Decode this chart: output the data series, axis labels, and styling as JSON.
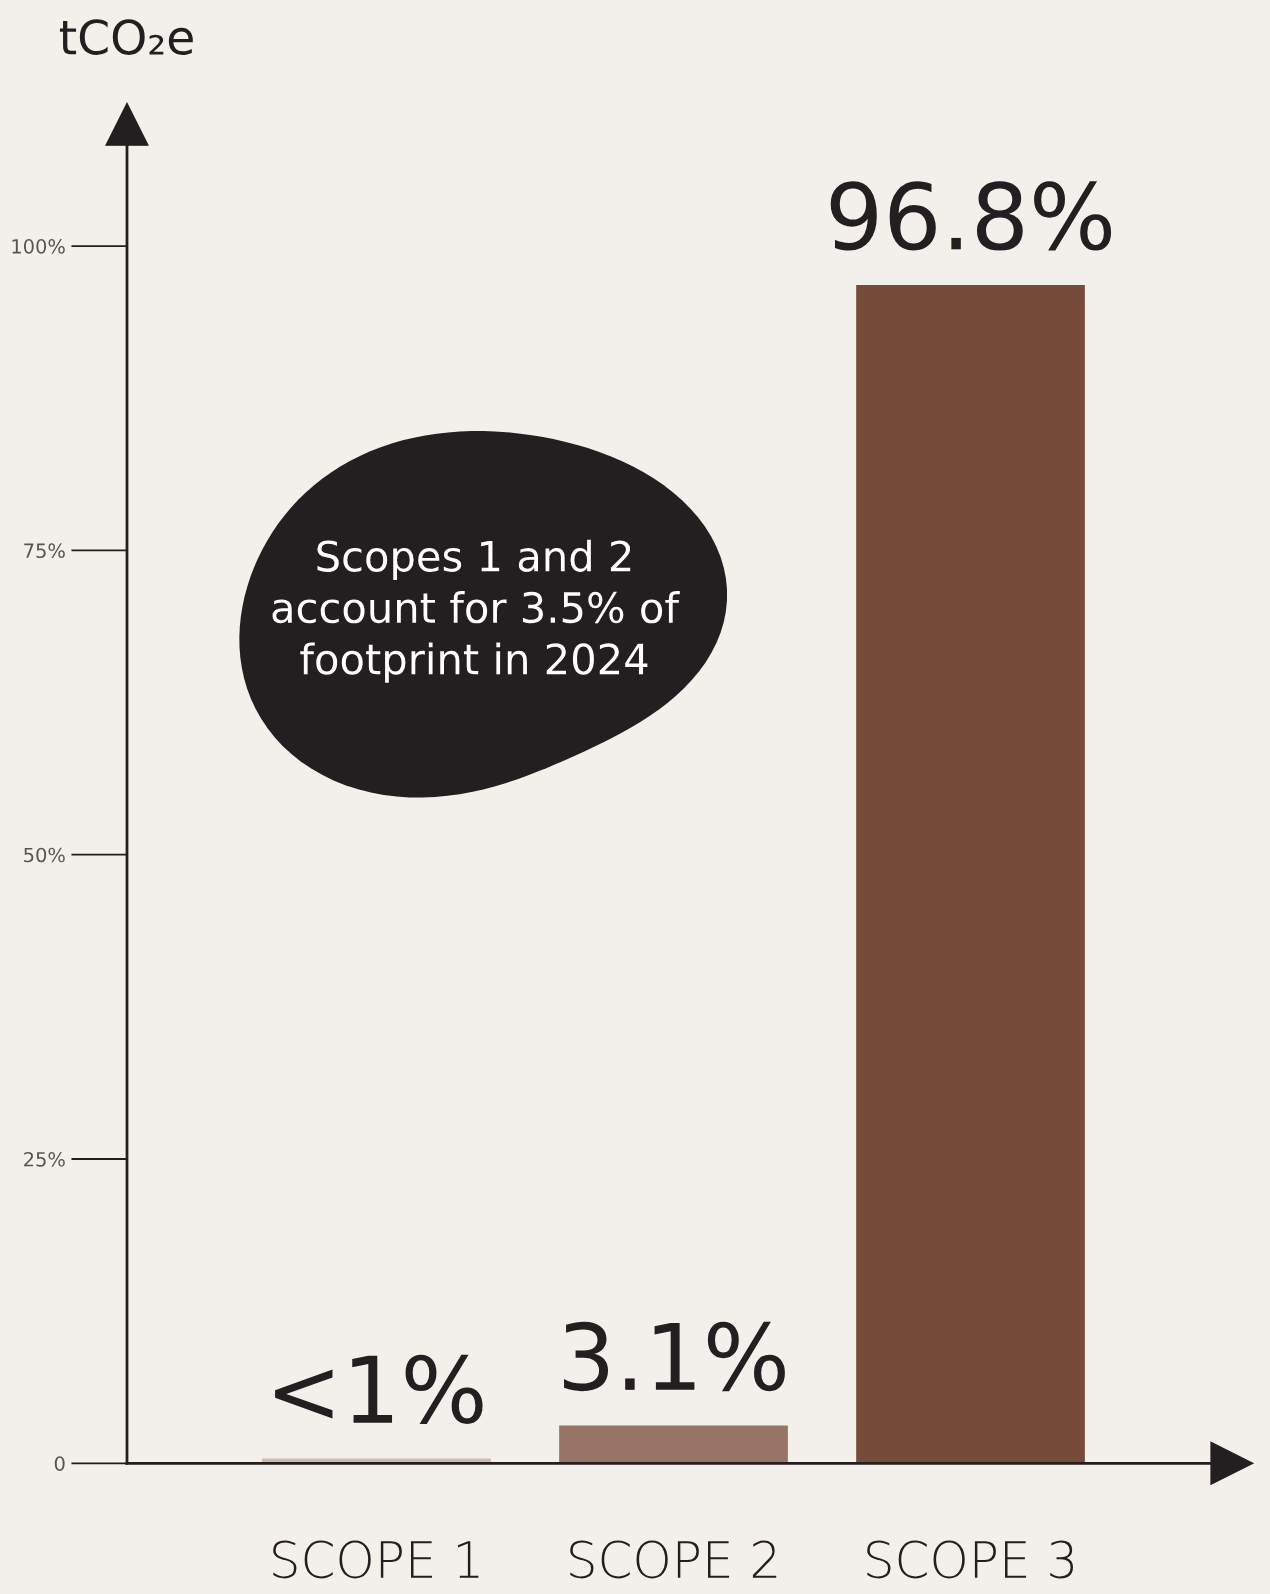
{
  "chart_data": {
    "type": "bar",
    "ylabel": "tCO₂e",
    "categories": [
      "SCOPE 1",
      "SCOPE 2",
      "SCOPE 3"
    ],
    "values": [
      0.4,
      3.1,
      96.8
    ],
    "colors": [
      "#cdbbaa",
      "#977465",
      "#774b3a"
    ],
    "value_labels": [
      "<1%",
      "3.1%",
      "96.8%"
    ],
    "ylim": [
      0,
      110
    ],
    "yticks": [
      0,
      {
        "value": 25,
        "label": "25%"
      },
      {
        "value": 50,
        "label": "50%"
      },
      {
        "value": 75,
        "label": "75%"
      },
      {
        "value": 100,
        "label": "100%"
      }
    ],
    "annotations": [
      "Scopes 1 and 2\naccount for 3.5% of\nfootprint in 2024"
    ],
    "grid": false,
    "legend": false
  }
}
